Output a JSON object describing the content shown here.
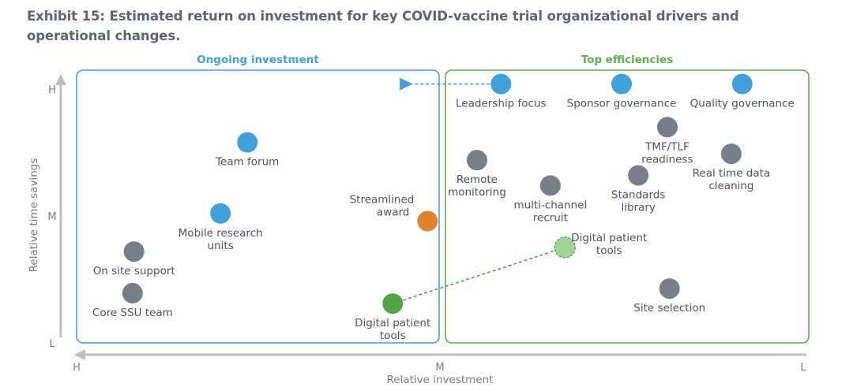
{
  "title": "Exhibit 15: Estimated return on investment for key COVID-vaccine trial organizational drivers and operational changes.",
  "colors": {
    "blue": "#42a1db",
    "gray": "#777d89",
    "orange": "#e08130",
    "green": "#52a447",
    "light_green": "#a3d29a",
    "axis": "#bcbec3",
    "zone_blue": "#42a1db",
    "zone_green": "#5fae4e"
  },
  "chart_data": {
    "type": "scatter",
    "title": "Exhibit 15: Estimated return on investment for key COVID-vaccine trial organizational drivers and operational changes.",
    "xlabel": "Relative investment",
    "ylabel": "Relative time savings",
    "x_scale_note": "0 = High investment (left), 10 = Low investment (right)",
    "y_scale_note": "0 = Low time savings (bottom), 10 = High time savings (top)",
    "xlim": [
      0,
      10
    ],
    "ylim": [
      0,
      10
    ],
    "x_ticks": [
      {
        "value": 0,
        "label": "H"
      },
      {
        "value": 5,
        "label": "M"
      },
      {
        "value": 10,
        "label": "L"
      }
    ],
    "y_ticks": [
      {
        "value": 10,
        "label": "H"
      },
      {
        "value": 5,
        "label": "M"
      },
      {
        "value": 0,
        "label": "L"
      }
    ],
    "grid": false,
    "zones": [
      {
        "name": "Ongoing investment",
        "x_range": [
          0,
          5
        ],
        "y_range": [
          0,
          10.6
        ],
        "color": "#42a1db"
      },
      {
        "name": "Top efficiencies",
        "x_range": [
          5,
          10
        ],
        "y_range": [
          0,
          10.6
        ],
        "color": "#5fae4e"
      }
    ],
    "points": [
      {
        "label": [
          "Leadership focus"
        ],
        "x": 5.84,
        "y": 10.2,
        "category": "blue",
        "label_pos": "below"
      },
      {
        "label": [
          "Sponsor governance"
        ],
        "x": 7.5,
        "y": 10.2,
        "category": "blue",
        "label_pos": "below"
      },
      {
        "label": [
          "Quality governance"
        ],
        "x": 9.16,
        "y": 10.2,
        "category": "blue",
        "label_pos": "below"
      },
      {
        "label": [
          "Team forum"
        ],
        "x": 2.35,
        "y": 7.9,
        "category": "blue",
        "label_pos": "below"
      },
      {
        "label": [
          "Mobile research",
          "units"
        ],
        "x": 1.98,
        "y": 5.1,
        "category": "blue",
        "label_pos": "below"
      },
      {
        "label": [
          "On site support"
        ],
        "x": 0.79,
        "y": 3.6,
        "category": "gray",
        "label_pos": "below"
      },
      {
        "label": [
          "Core SSU team"
        ],
        "x": 0.77,
        "y": 1.96,
        "category": "gray",
        "label_pos": "below"
      },
      {
        "label": [
          "Streamlined",
          "award"
        ],
        "x": 4.83,
        "y": 4.8,
        "category": "orange",
        "label_pos": "upper-left"
      },
      {
        "label": [
          "Digital patient",
          "tools"
        ],
        "x": 4.35,
        "y": 1.55,
        "category": "green",
        "label_pos": "below"
      },
      {
        "label": [
          "Digital patient",
          "tools"
        ],
        "x": 6.72,
        "y": 3.76,
        "category": "light_green",
        "label_pos": "right",
        "dashed": true
      },
      {
        "label": [
          "Remote",
          "monitoring"
        ],
        "x": 5.51,
        "y": 7.2,
        "category": "gray",
        "label_pos": "below"
      },
      {
        "label": [
          "multi-channel",
          "recruit"
        ],
        "x": 6.52,
        "y": 6.2,
        "category": "gray",
        "label_pos": "below"
      },
      {
        "label": [
          "TMF/TLF",
          "readiness"
        ],
        "x": 8.13,
        "y": 8.5,
        "category": "gray",
        "label_pos": "below"
      },
      {
        "label": [
          "Standards",
          "library"
        ],
        "x": 7.73,
        "y": 6.6,
        "category": "gray",
        "label_pos": "below"
      },
      {
        "label": [
          "Real time data",
          "cleaning"
        ],
        "x": 9.01,
        "y": 7.45,
        "category": "gray",
        "label_pos": "below"
      },
      {
        "label": [
          "Site selection"
        ],
        "x": 8.16,
        "y": 2.14,
        "category": "gray",
        "label_pos": "below"
      }
    ],
    "annotations": [
      {
        "type": "dashed-arrow",
        "from_point": "Leadership focus",
        "to": {
          "x": 4.5,
          "y": 10.2
        },
        "color": "#42a1db"
      },
      {
        "type": "dashed-line",
        "from": {
          "x": 4.35,
          "y": 1.55
        },
        "to": {
          "x": 6.72,
          "y": 3.76
        },
        "color": "#52a447"
      }
    ]
  }
}
